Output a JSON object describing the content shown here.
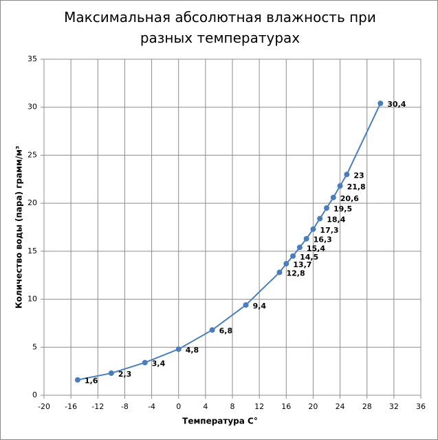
{
  "chart_data": {
    "type": "line",
    "title": "Максимальная абсолютная влажность при разных температурах",
    "x_label": "Температура С°",
    "y_label": "Количество воды (пара) грамм/м³",
    "x": [
      -15,
      -10,
      -5,
      0,
      5,
      10,
      15,
      16,
      17,
      18,
      19,
      20,
      21,
      22,
      23,
      24,
      25,
      30
    ],
    "series": [
      {
        "color": "#4a7ebb",
        "values": [
          1.6,
          2.3,
          3.4,
          4.8,
          6.8,
          9.4,
          12.8,
          13.7,
          14.5,
          15.4,
          16.3,
          17.3,
          18.4,
          19.5,
          20.6,
          21.8,
          23,
          30.4
        ],
        "value_labels": [
          "1,6",
          "2,3",
          "3,4",
          "4,8",
          "6,8",
          "9,4",
          "12,8",
          "13,7",
          "14,5",
          "15,4",
          "16,3",
          "17,3",
          "18,4",
          "19,5",
          "20,6",
          "21,8",
          "23",
          "30,4"
        ]
      }
    ],
    "xlim": [
      -20,
      36
    ],
    "xticks": [
      -20,
      -16,
      -12,
      -8,
      -4,
      0,
      4,
      8,
      12,
      16,
      20,
      24,
      28,
      32,
      36
    ],
    "ylim": [
      0,
      35
    ],
    "yticks": [
      0,
      5,
      10,
      15,
      20,
      25,
      30,
      35
    ],
    "grid": true
  }
}
